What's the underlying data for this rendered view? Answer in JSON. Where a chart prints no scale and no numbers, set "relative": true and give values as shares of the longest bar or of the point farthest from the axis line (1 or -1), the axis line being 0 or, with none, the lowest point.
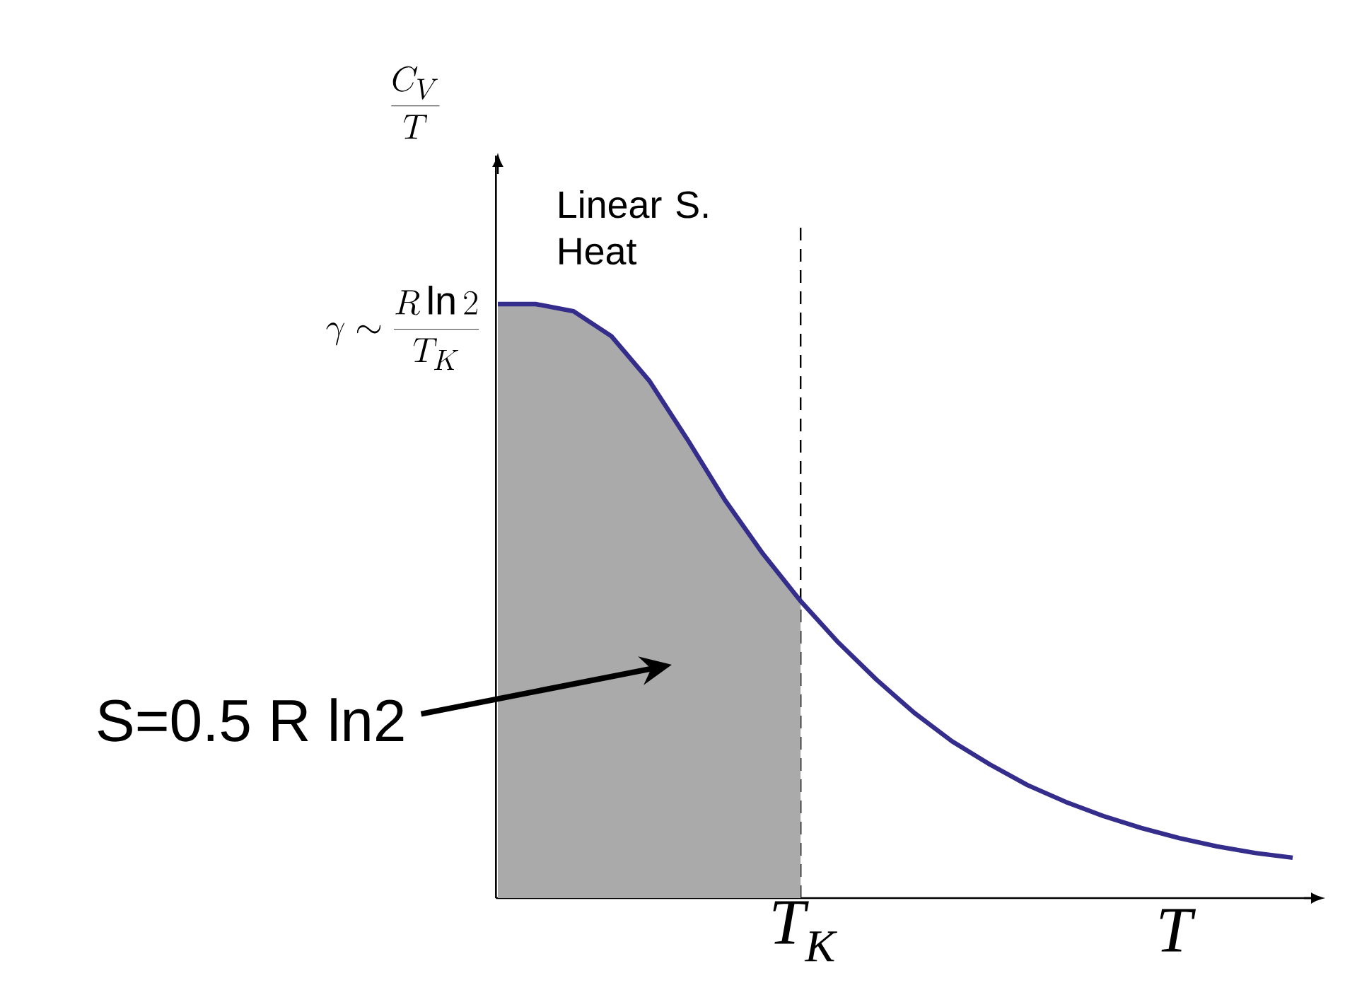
{
  "chart_data": {
    "type": "line",
    "relative": true,
    "xlabel": "T",
    "categories": [
      null,
      null,
      null,
      null,
      null,
      null,
      null,
      null,
      null,
      null,
      null,
      null,
      null,
      null,
      null,
      null,
      null,
      null,
      null,
      null,
      null,
      null
    ],
    "series": [
      {
        "type": "area",
        "color": "#a9aaa9",
        "values": [
          1.0,
          1.0,
          0.988,
          0.946,
          0.871,
          0.773,
          0.67,
          0.58,
          0.5,
          null,
          null,
          null,
          null,
          null,
          null,
          null,
          null,
          null,
          null,
          null,
          null,
          null
        ]
      },
      {
        "color": "#352d8c",
        "values": [
          1.0,
          1.0,
          0.988,
          0.946,
          0.871,
          0.773,
          0.67,
          0.58,
          0.5,
          0.43,
          0.368,
          0.312,
          0.264,
          0.225,
          0.19,
          0.162,
          0.138,
          0.118,
          0.101,
          0.087,
          0.076,
          0.068
        ]
      }
    ],
    "annotations": [
      "\\gamma \\sim \\frac{R\\ln 2}{T_K}",
      "Linear S. Heat",
      "S=0.5 R ln2",
      "T$_{K}$",
      "\\frac{C_V}{T}"
    ]
  }
}
